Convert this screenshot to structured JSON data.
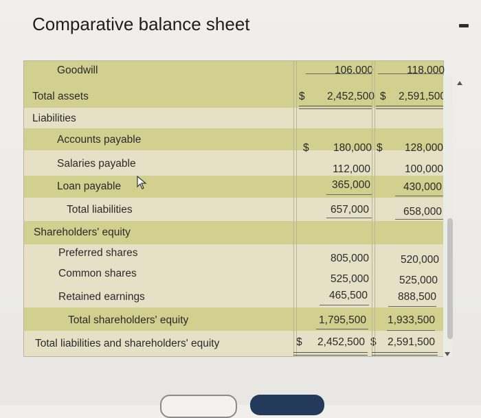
{
  "title": "Comparative balance sheet",
  "rows": {
    "goodwill": {
      "label": "Goodwill",
      "cur": "106,000",
      "prev": "118,000"
    },
    "total_assets": {
      "label": "Total assets",
      "d1": "$",
      "cur": "2,452,500",
      "d2": "$",
      "prev": "2,591,500"
    },
    "liabilities": {
      "label": "Liabilities"
    },
    "accounts_payable": {
      "label": "Accounts payable",
      "d1": "$",
      "cur": "180,000",
      "d2": "$",
      "prev": "128,000"
    },
    "salaries_payable": {
      "label": "Salaries payable",
      "cur": "112,000",
      "prev": "100,000"
    },
    "loan_payable": {
      "label": "Loan payable",
      "cur": "365,000",
      "prev": "430,000"
    },
    "total_liabilities": {
      "label": "Total liabilities",
      "cur": "657,000",
      "prev": "658,000"
    },
    "shareholders_equity": {
      "label": "Shareholders' equity"
    },
    "preferred_shares": {
      "label": "Preferred shares",
      "cur": "805,000",
      "prev": "520,000"
    },
    "common_shares": {
      "label": "Common shares",
      "cur": "525,000",
      "prev": "525,000"
    },
    "retained_earnings": {
      "label": "Retained earnings",
      "cur": "465,500",
      "prev": "888,500"
    },
    "total_shareholders_equity": {
      "label": "Total shareholders' equity",
      "cur": "1,795,500",
      "prev": "1,933,500"
    },
    "total_liabilities_equity": {
      "label": "Total liabilities and shareholders' equity",
      "d1": "$",
      "cur": "2,452,500",
      "d2": "$",
      "prev": "2,591,500"
    }
  },
  "icons": {
    "cursor": "mouse-pointer-icon",
    "minimize": "dash-icon",
    "scroll_up": "arrow-up-icon",
    "scroll_down": "arrow-down-icon"
  }
}
